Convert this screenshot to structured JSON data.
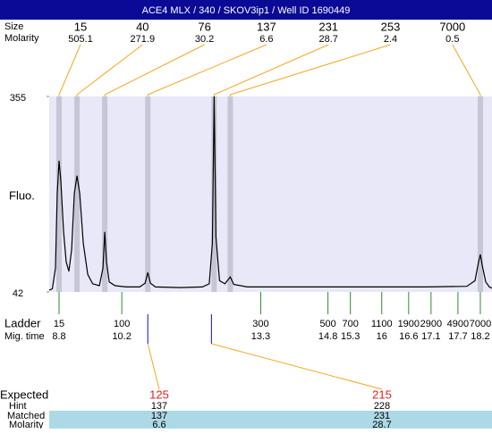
{
  "header": {
    "title": "ACE4 MLX / 340 / SKOV3ip1 / Well ID 1690449"
  },
  "chart_data": {
    "type": "line",
    "y_label": "Fluo.",
    "ylim": [
      42,
      355
    ],
    "yticks": [
      42,
      355
    ],
    "xlim": [
      8.58,
      18.46
    ],
    "peaks": {
      "size_label": "Size",
      "molarity_label": "Molarity",
      "size": [
        15,
        40,
        76,
        137,
        231,
        253,
        7000
      ],
      "molarity": [
        505.1,
        271.9,
        30.2,
        6.6,
        28.7,
        2.4,
        0.5
      ],
      "x": [
        8.8,
        9.2,
        9.82,
        10.78,
        12.26,
        12.62,
        18.2
      ]
    },
    "ladder": {
      "label": "Ladder",
      "time_label": "Mig. time",
      "size": [
        15,
        100,
        300,
        500,
        700,
        1100,
        1900,
        2900,
        4900,
        7000
      ],
      "x": [
        8.8,
        10.2,
        13.3,
        14.8,
        15.3,
        16,
        16.6,
        17.1,
        17.7,
        18.2
      ]
    },
    "trace": {
      "color": "#000000",
      "x": [
        8.58,
        8.65,
        8.72,
        8.76,
        8.8,
        8.84,
        8.9,
        8.96,
        9.02,
        9.08,
        9.14,
        9.2,
        9.26,
        9.34,
        9.44,
        9.55,
        9.7,
        9.78,
        9.82,
        9.86,
        9.92,
        10.05,
        10.3,
        10.6,
        10.72,
        10.78,
        10.84,
        10.95,
        11.5,
        12.0,
        12.15,
        12.22,
        12.26,
        12.3,
        12.38,
        12.5,
        12.62,
        12.7,
        13.0,
        14,
        15,
        16,
        17,
        17.9,
        18.08,
        18.16,
        18.2,
        18.24,
        18.32,
        18.4,
        18.46
      ],
      "values": [
        45,
        47,
        80,
        200,
        252,
        220,
        140,
        90,
        75,
        110,
        200,
        228,
        200,
        120,
        70,
        55,
        52,
        80,
        138,
        90,
        58,
        52,
        50,
        50,
        56,
        73,
        56,
        50,
        49,
        50,
        55,
        120,
        355,
        130,
        60,
        55,
        66,
        54,
        50,
        50,
        50,
        50,
        50,
        51,
        60,
        90,
        102,
        85,
        58,
        50,
        48
      ]
    },
    "expected": {
      "label": "Expected",
      "x": [
        10.78,
        12.2
      ],
      "values": [
        125,
        215
      ]
    },
    "hint": {
      "label": "Hint",
      "values": [
        137,
        228
      ]
    },
    "matched": {
      "label": "Matched",
      "values": [
        137,
        231
      ]
    },
    "molarity": {
      "label": "Molarity",
      "values": [
        6.6,
        28.7
      ]
    }
  }
}
